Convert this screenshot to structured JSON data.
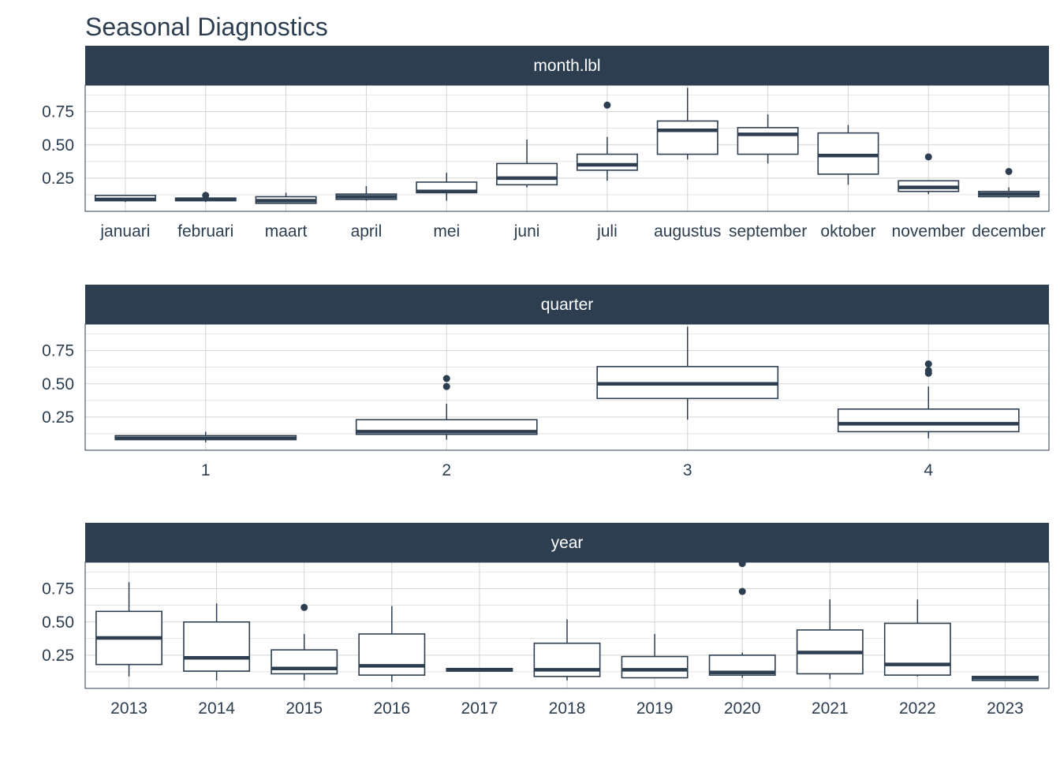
{
  "chart_data": {
    "type": "boxplot",
    "title": "Seasonal Diagnostics",
    "colors": {
      "box": "#2c3e50",
      "strip": "#2c3e50",
      "strip_text": "#ffffff",
      "grid": "#d3d3d3",
      "panel_border": "#2c3e50",
      "axis_text": "#2c3e50"
    },
    "y_ticks": [
      0.25,
      0.5,
      0.75
    ],
    "y_tick_labels": [
      "0.25",
      "0.50",
      "0.75"
    ],
    "ylim": [
      0.0,
      0.95
    ],
    "panels": [
      {
        "strip_label": "month.lbl",
        "boxes": [
          {
            "category": "januari",
            "lower": 0.07,
            "q1": 0.08,
            "median": 0.09,
            "q3": 0.12,
            "upper": 0.12,
            "outliers": []
          },
          {
            "category": "februari",
            "lower": 0.07,
            "q1": 0.08,
            "median": 0.09,
            "q3": 0.1,
            "upper": 0.11,
            "outliers": [
              0.12
            ]
          },
          {
            "category": "maart",
            "lower": 0.06,
            "q1": 0.06,
            "median": 0.08,
            "q3": 0.11,
            "upper": 0.14,
            "outliers": []
          },
          {
            "category": "april",
            "lower": 0.08,
            "q1": 0.09,
            "median": 0.11,
            "q3": 0.13,
            "upper": 0.19,
            "outliers": []
          },
          {
            "category": "mei",
            "lower": 0.08,
            "q1": 0.14,
            "median": 0.15,
            "q3": 0.22,
            "upper": 0.29,
            "outliers": []
          },
          {
            "category": "juni",
            "lower": 0.18,
            "q1": 0.2,
            "median": 0.25,
            "q3": 0.36,
            "upper": 0.54,
            "outliers": []
          },
          {
            "category": "juli",
            "lower": 0.23,
            "q1": 0.31,
            "median": 0.35,
            "q3": 0.43,
            "upper": 0.56,
            "outliers": [
              0.8
            ]
          },
          {
            "category": "augustus",
            "lower": 0.39,
            "q1": 0.43,
            "median": 0.61,
            "q3": 0.68,
            "upper": 0.93,
            "outliers": []
          },
          {
            "category": "september",
            "lower": 0.36,
            "q1": 0.43,
            "median": 0.58,
            "q3": 0.63,
            "upper": 0.73,
            "outliers": []
          },
          {
            "category": "oktober",
            "lower": 0.2,
            "q1": 0.28,
            "median": 0.42,
            "q3": 0.59,
            "upper": 0.65,
            "outliers": []
          },
          {
            "category": "november",
            "lower": 0.13,
            "q1": 0.15,
            "median": 0.18,
            "q3": 0.23,
            "upper": 0.23,
            "outliers": [
              0.41
            ]
          },
          {
            "category": "december",
            "lower": 0.1,
            "q1": 0.11,
            "median": 0.13,
            "q3": 0.15,
            "upper": 0.18,
            "outliers": [
              0.3
            ]
          }
        ]
      },
      {
        "strip_label": "quarter",
        "boxes": [
          {
            "category": "1",
            "lower": 0.06,
            "q1": 0.08,
            "median": 0.09,
            "q3": 0.11,
            "upper": 0.14,
            "outliers": []
          },
          {
            "category": "2",
            "lower": 0.08,
            "q1": 0.12,
            "median": 0.14,
            "q3": 0.23,
            "upper": 0.35,
            "outliers": [
              0.48,
              0.54
            ]
          },
          {
            "category": "3",
            "lower": 0.23,
            "q1": 0.39,
            "median": 0.5,
            "q3": 0.63,
            "upper": 0.93,
            "outliers": []
          },
          {
            "category": "4",
            "lower": 0.09,
            "q1": 0.14,
            "median": 0.2,
            "q3": 0.31,
            "upper": 0.48,
            "outliers": [
              0.58,
              0.6,
              0.65
            ]
          }
        ]
      },
      {
        "strip_label": "year",
        "boxes": [
          {
            "category": "2013",
            "lower": 0.09,
            "q1": 0.18,
            "median": 0.38,
            "q3": 0.58,
            "upper": 0.8,
            "outliers": []
          },
          {
            "category": "2014",
            "lower": 0.06,
            "q1": 0.13,
            "median": 0.23,
            "q3": 0.5,
            "upper": 0.64,
            "outliers": []
          },
          {
            "category": "2015",
            "lower": 0.06,
            "q1": 0.11,
            "median": 0.15,
            "q3": 0.29,
            "upper": 0.41,
            "outliers": [
              0.61
            ]
          },
          {
            "category": "2016",
            "lower": 0.05,
            "q1": 0.1,
            "median": 0.17,
            "q3": 0.41,
            "upper": 0.62,
            "outliers": []
          },
          {
            "category": "2017",
            "lower": 0.13,
            "q1": 0.13,
            "median": 0.14,
            "q3": 0.15,
            "upper": 0.15,
            "outliers": []
          },
          {
            "category": "2018",
            "lower": 0.06,
            "q1": 0.09,
            "median": 0.14,
            "q3": 0.34,
            "upper": 0.52,
            "outliers": []
          },
          {
            "category": "2019",
            "lower": 0.08,
            "q1": 0.08,
            "median": 0.14,
            "q3": 0.24,
            "upper": 0.41,
            "outliers": []
          },
          {
            "category": "2020",
            "lower": 0.08,
            "q1": 0.1,
            "median": 0.12,
            "q3": 0.25,
            "upper": 0.27,
            "outliers": [
              0.73,
              0.94
            ]
          },
          {
            "category": "2021",
            "lower": 0.07,
            "q1": 0.11,
            "median": 0.27,
            "q3": 0.44,
            "upper": 0.67,
            "outliers": []
          },
          {
            "category": "2022",
            "lower": 0.09,
            "q1": 0.1,
            "median": 0.18,
            "q3": 0.49,
            "upper": 0.67,
            "outliers": []
          },
          {
            "category": "2023",
            "lower": 0.06,
            "q1": 0.06,
            "median": 0.08,
            "q3": 0.09,
            "upper": 0.09,
            "outliers": []
          }
        ]
      }
    ]
  }
}
